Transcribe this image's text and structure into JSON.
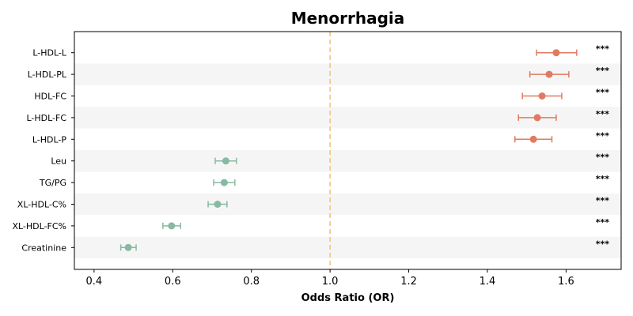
{
  "chart_data": {
    "type": "forest",
    "title": "Menorrhagia",
    "xlabel": "Odds Ratio (OR)",
    "ylabel": "",
    "xlim": [
      0.35,
      1.74
    ],
    "xticks": [
      0.4,
      0.6,
      0.8,
      1.0,
      1.2,
      1.4,
      1.6
    ],
    "reference_line": 1.0,
    "reference_line_color": "#f0c27a",
    "colors": {
      "risk": "#e07b62",
      "protective": "#88b9a1",
      "band": "#f5f5f5"
    },
    "rows": [
      {
        "label": "L-HDL-L",
        "or": 1.575,
        "ci_low": 1.525,
        "ci_high": 1.627,
        "sig": "***"
      },
      {
        "label": "L-HDL-PL",
        "or": 1.557,
        "ci_low": 1.508,
        "ci_high": 1.607,
        "sig": "***"
      },
      {
        "label": "HDL-FC",
        "or": 1.539,
        "ci_low": 1.489,
        "ci_high": 1.589,
        "sig": "***"
      },
      {
        "label": "L-HDL-FC",
        "or": 1.527,
        "ci_low": 1.479,
        "ci_high": 1.575,
        "sig": "***"
      },
      {
        "label": "L-HDL-P",
        "or": 1.517,
        "ci_low": 1.47,
        "ci_high": 1.564,
        "sig": "***"
      },
      {
        "label": "Leu",
        "or": 0.735,
        "ci_low": 0.708,
        "ci_high": 0.762,
        "sig": "***"
      },
      {
        "label": "TG/PG",
        "or": 0.731,
        "ci_low": 0.704,
        "ci_high": 0.758,
        "sig": "***"
      },
      {
        "label": "XL-HDL-C%",
        "or": 0.714,
        "ci_low": 0.69,
        "ci_high": 0.738,
        "sig": "***"
      },
      {
        "label": "XL-HDL-FC%",
        "or": 0.597,
        "ci_low": 0.575,
        "ci_high": 0.62,
        "sig": "***"
      },
      {
        "label": "Creatinine",
        "or": 0.487,
        "ci_low": 0.468,
        "ci_high": 0.507,
        "sig": "***"
      }
    ]
  }
}
